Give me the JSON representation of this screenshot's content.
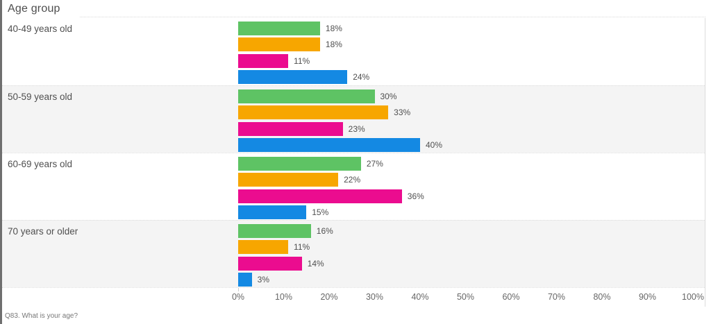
{
  "title": "Age group",
  "footer": "Q83. What is your age?",
  "chart_data": {
    "type": "bar",
    "orientation": "horizontal",
    "title": "Age group",
    "xlabel": "",
    "ylabel": "Age group",
    "xlim": [
      0,
      100
    ],
    "grid": "row-banding",
    "legend_position": "none",
    "categories": [
      "40-49 years old",
      "50-59 years old",
      "60-69 years old",
      "70 years or older"
    ],
    "series": [
      {
        "name": "green",
        "color": "#5EC364",
        "values": [
          18,
          30,
          27,
          16
        ]
      },
      {
        "name": "orange",
        "color": "#F7A600",
        "values": [
          18,
          33,
          22,
          11
        ]
      },
      {
        "name": "magenta",
        "color": "#EB0C8F",
        "values": [
          11,
          23,
          36,
          14
        ]
      },
      {
        "name": "blue",
        "color": "#1489E3",
        "values": [
          24,
          40,
          15,
          3
        ]
      }
    ],
    "value_label_format": "{v}%",
    "x_ticks": [
      "0%",
      "10%",
      "20%",
      "30%",
      "40%",
      "50%",
      "60%",
      "70%",
      "80%",
      "90%",
      "100%"
    ],
    "band_colors": [
      "#ffffff",
      "#f4f4f4"
    ],
    "text_color": "#4f4f4f"
  }
}
